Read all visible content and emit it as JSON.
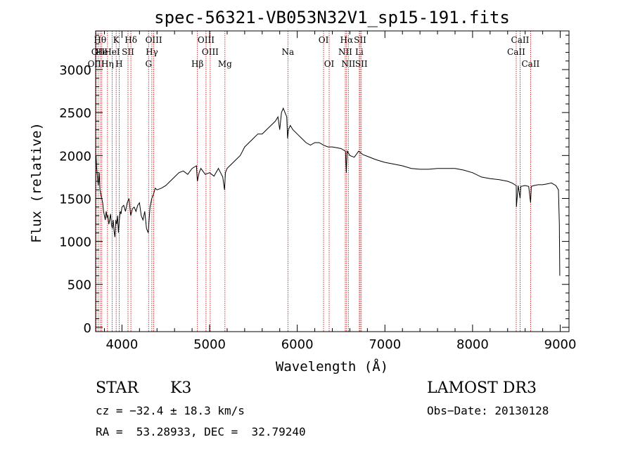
{
  "chart_data": {
    "type": "line",
    "title": "spec-56321-VB053N32V1_sp15-191.fits",
    "xlabel": "Wavelength (Å)",
    "ylabel": "Flux (relative)",
    "xlim": [
      3700,
      9100
    ],
    "ylim": [
      -50,
      3450
    ],
    "xticks": [
      4000,
      5000,
      6000,
      7000,
      8000,
      9000
    ],
    "yticks": [
      0,
      500,
      1000,
      1500,
      2000,
      2500,
      3000
    ],
    "grid": false,
    "line_color": "#000000",
    "marker_color": "#cc0000",
    "series": [
      {
        "x": [
          3705,
          3712,
          3720,
          3730,
          3740,
          3750,
          3760,
          3770,
          3780,
          3790,
          3800,
          3810,
          3820,
          3830,
          3840,
          3850,
          3860,
          3870,
          3880,
          3890,
          3900,
          3910,
          3920,
          3930,
          3940,
          3950,
          3960,
          3970,
          3980,
          3990,
          4000,
          4020,
          4040,
          4060,
          4080,
          4100,
          4120,
          4140,
          4160,
          4180,
          4200,
          4220,
          4240,
          4260,
          4280,
          4300,
          4310,
          4320,
          4340,
          4360,
          4380,
          4400,
          4450,
          4500,
          4550,
          4600,
          4650,
          4700,
          4750,
          4800,
          4850,
          4860,
          4880,
          4900,
          4950,
          5000,
          5050,
          5100,
          5150,
          5170,
          5180,
          5200,
          5250,
          5300,
          5350,
          5400,
          5450,
          5500,
          5550,
          5600,
          5650,
          5700,
          5750,
          5780,
          5800,
          5820,
          5840,
          5860,
          5880,
          5890,
          5900,
          5920,
          5950,
          6000,
          6050,
          6100,
          6150,
          6200,
          6250,
          6300,
          6350,
          6400,
          6450,
          6500,
          6550,
          6560,
          6563,
          6570,
          6600,
          6650,
          6700,
          6750,
          6800,
          6900,
          7000,
          7100,
          7200,
          7300,
          7400,
          7500,
          7600,
          7700,
          7800,
          7900,
          8000,
          8100,
          8200,
          8300,
          8400,
          8450,
          8498,
          8500,
          8520,
          8542,
          8550,
          8600,
          8640,
          8662,
          8670,
          8700,
          8750,
          8800,
          8850,
          8900,
          8950,
          8980,
          8990,
          8995
        ],
        "y": [
          2000,
          1850,
          1750,
          1650,
          1800,
          1600,
          1550,
          1500,
          1450,
          1350,
          1300,
          1250,
          1350,
          1280,
          1300,
          1200,
          1250,
          1320,
          1200,
          1150,
          1250,
          1120,
          1050,
          1250,
          1200,
          1300,
          1100,
          1250,
          1350,
          1320,
          1400,
          1420,
          1350,
          1450,
          1500,
          1300,
          1380,
          1400,
          1350,
          1420,
          1450,
          1300,
          1250,
          1350,
          1150,
          1100,
          1250,
          1400,
          1500,
          1550,
          1620,
          1600,
          1620,
          1650,
          1700,
          1750,
          1800,
          1820,
          1780,
          1850,
          1880,
          1700,
          1800,
          1850,
          1780,
          1800,
          1760,
          1850,
          1750,
          1600,
          1800,
          1850,
          1900,
          1950,
          2000,
          2100,
          2150,
          2200,
          2250,
          2250,
          2300,
          2350,
          2400,
          2450,
          2300,
          2500,
          2550,
          2500,
          2450,
          2200,
          2300,
          2350,
          2300,
          2250,
          2200,
          2150,
          2120,
          2150,
          2150,
          2120,
          2100,
          2100,
          2090,
          2080,
          2050,
          1800,
          1900,
          2050,
          2000,
          1980,
          2050,
          2010,
          1990,
          1950,
          1920,
          1900,
          1880,
          1850,
          1840,
          1840,
          1850,
          1850,
          1850,
          1830,
          1800,
          1750,
          1730,
          1720,
          1700,
          1680,
          1650,
          1400,
          1650,
          1500,
          1640,
          1650,
          1640,
          1450,
          1640,
          1650,
          1660,
          1660,
          1670,
          1680,
          1650,
          1600,
          1200,
          600
        ]
      }
    ],
    "line_markers": [
      {
        "label": "Hθ",
        "x": 3750,
        "row": 0
      },
      {
        "label": "OII",
        "x": 3727,
        "row": 1
      },
      {
        "label": "OIII",
        "x": 3705,
        "row": 2
      },
      {
        "label": "He",
        "x": 3770,
        "row": 1
      },
      {
        "label": "Hη",
        "x": 3835,
        "row": 2
      },
      {
        "label": "K",
        "x": 3934,
        "row": 0
      },
      {
        "label": "HeI",
        "x": 3888,
        "row": 1
      },
      {
        "label": "H",
        "x": 3968,
        "row": 2
      },
      {
        "label": "SII",
        "x": 4069,
        "row": 1
      },
      {
        "label": "Hδ",
        "x": 4102,
        "row": 0
      },
      {
        "label": "OIII",
        "x": 4363,
        "row": 0
      },
      {
        "label": "Hγ",
        "x": 4341,
        "row": 1
      },
      {
        "label": "G",
        "x": 4304,
        "row": 2
      },
      {
        "label": "OIII",
        "x": 4959,
        "row": 0
      },
      {
        "label": "OIII",
        "x": 5007,
        "row": 1
      },
      {
        "label": "Hβ",
        "x": 4861,
        "row": 2
      },
      {
        "label": "Mg",
        "x": 5175,
        "row": 2
      },
      {
        "label": "Na",
        "x": 5893,
        "row": 1
      },
      {
        "label": "OI",
        "x": 6300,
        "row": 0
      },
      {
        "label": "OI",
        "x": 6364,
        "row": 2
      },
      {
        "label": "Hα",
        "x": 6563,
        "row": 0
      },
      {
        "label": "NII",
        "x": 6548,
        "row": 1
      },
      {
        "label": "NII",
        "x": 6583,
        "row": 2
      },
      {
        "label": "SII",
        "x": 6717,
        "row": 0
      },
      {
        "label": "Li",
        "x": 6708,
        "row": 1
      },
      {
        "label": "SII",
        "x": 6731,
        "row": 2
      },
      {
        "label": "CaII",
        "x": 8542,
        "row": 0
      },
      {
        "label": "CaII",
        "x": 8498,
        "row": 1
      },
      {
        "label": "CaII",
        "x": 8662,
        "row": 2
      }
    ]
  },
  "info": {
    "object_class": "STAR",
    "subclass": "K3",
    "survey": "LAMOST DR3",
    "cz": "cz = −32.4 ± 18.3 km/s",
    "obs_date": "Obs−Date: 20130128",
    "coords": "RA =  53.28933, DEC =  32.79240"
  }
}
